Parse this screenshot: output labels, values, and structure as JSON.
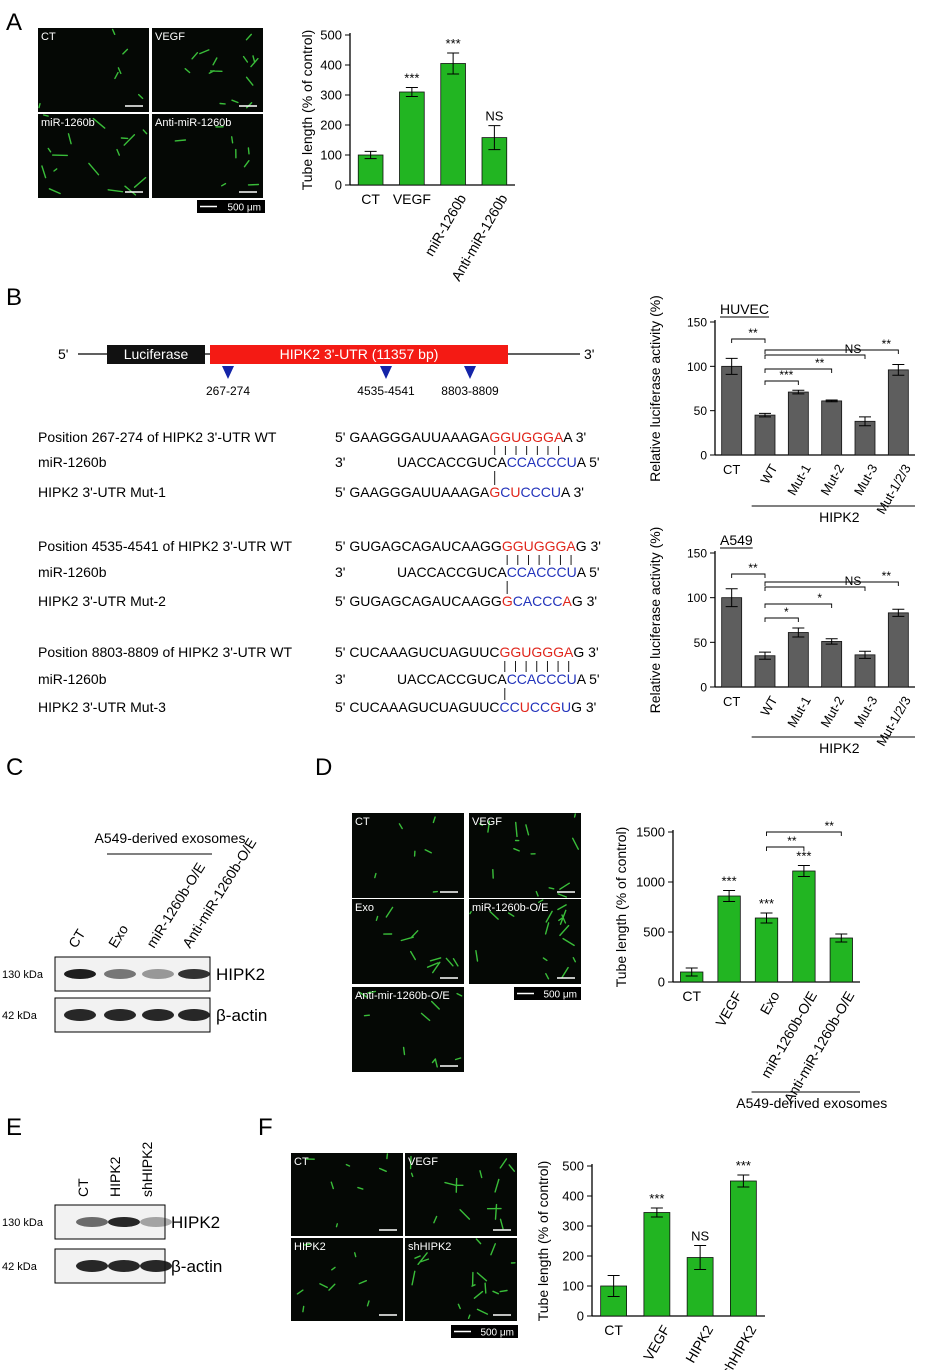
{
  "panel_labels": [
    "A",
    "B",
    "C",
    "D",
    "E",
    "F"
  ],
  "micrographs": {
    "a": {
      "labels": [
        "CT",
        "VEGF",
        "miR-1260b",
        "Anti-miR-1260b"
      ],
      "scale_bar": "500 μm"
    },
    "d": {
      "labels": [
        "CT",
        "VEGF",
        "Exo",
        "miR-1260b-O/E",
        "Anti-mir-1260b-O/E"
      ],
      "scale_bar": "500 μm"
    },
    "f": {
      "labels": [
        "CT",
        "VEGF",
        "HIPK2",
        "shHIPK2"
      ],
      "scale_bar": "500 μm"
    }
  },
  "construct": {
    "five_prime": "5'",
    "reporter": "Luciferase",
    "utr": "HIPK2 3'-UTR (11357 bp)",
    "three_prime": "3'",
    "sites": [
      "267-274",
      "4535-4541",
      "8803-8809"
    ]
  },
  "alignments": [
    {
      "rows": [
        {
          "label": "Position 267-274 of HIPK2 3'-UTR WT",
          "segments": [
            {
              "text": "5' GAAGGGAUUAAAGA",
              "color": "#000000"
            },
            {
              "text": "GGUGGGA",
              "color": "#e0261c"
            },
            {
              "text": "A 3'",
              "color": "#000000"
            }
          ]
        },
        {
          "label": "miR-1260b",
          "segments": [
            {
              "text": "3'",
              "color": "#000000"
            },
            {
              "text": "UACCACCGUCA",
              "color": "#000000"
            },
            {
              "text": "CCACCCU",
              "color": "#2233bb"
            },
            {
              "text": "A 5'",
              "color": "#000000"
            }
          ]
        },
        {
          "label": "HIPK2 3'-UTR Mut-1",
          "segments": [
            {
              "text": "5' GAAGGGAUUAAAGA",
              "color": "#000000"
            },
            {
              "text": "G",
              "color": "#e0261c"
            },
            {
              "text": "C",
              "color": "#2233bb"
            },
            {
              "text": "U",
              "color": "#e0261c"
            },
            {
              "text": "CCCU",
              "color": "#2233bb"
            },
            {
              "text": "A 3'",
              "color": "#000000"
            }
          ]
        }
      ]
    },
    {
      "rows": [
        {
          "label": "Position 4535-4541 of HIPK2 3'-UTR WT",
          "segments": [
            {
              "text": "5' GUGAGCAGAUCAAGG",
              "color": "#000000"
            },
            {
              "text": "GGUGGGA",
              "color": "#e0261c"
            },
            {
              "text": "G 3'",
              "color": "#000000"
            }
          ]
        },
        {
          "label": "miR-1260b",
          "segments": [
            {
              "text": "3'",
              "color": "#000000"
            },
            {
              "text": "UACCACCGUCA",
              "color": "#000000"
            },
            {
              "text": "CCACCCU",
              "color": "#2233bb"
            },
            {
              "text": "A 5'",
              "color": "#000000"
            }
          ]
        },
        {
          "label": "HIPK2 3'-UTR Mut-2",
          "segments": [
            {
              "text": "5' GUGAGCAGAUCAAGG",
              "color": "#000000"
            },
            {
              "text": "G",
              "color": "#e0261c"
            },
            {
              "text": "CACCC",
              "color": "#2233bb"
            },
            {
              "text": "A",
              "color": "#e0261c"
            },
            {
              "text": "G 3'",
              "color": "#000000"
            }
          ]
        }
      ]
    },
    {
      "rows": [
        {
          "label": "Position 8803-8809 of HIPK2 3'-UTR WT",
          "segments": [
            {
              "text": "5' CUCAAAGUCUAGUUC",
              "color": "#000000"
            },
            {
              "text": "GGUGGGA",
              "color": "#e0261c"
            },
            {
              "text": "G 3'",
              "color": "#000000"
            }
          ]
        },
        {
          "label": "miR-1260b",
          "segments": [
            {
              "text": "3'",
              "color": "#000000"
            },
            {
              "text": "UACCACCGUCA",
              "color": "#000000"
            },
            {
              "text": "CCACCCU",
              "color": "#2233bb"
            },
            {
              "text": "A 5'",
              "color": "#000000"
            }
          ]
        },
        {
          "label": "HIPK2 3'-UTR Mut-3",
          "segments": [
            {
              "text": "5' CUCAAAGUCUAGUUC",
              "color": "#000000"
            },
            {
              "text": "CC",
              "color": "#2233bb"
            },
            {
              "text": "U",
              "color": "#e0261c"
            },
            {
              "text": "CC",
              "color": "#2233bb"
            },
            {
              "text": "G",
              "color": "#e0261c"
            },
            {
              "text": "U",
              "color": "#2233bb"
            },
            {
              "text": "G 3'",
              "color": "#000000"
            }
          ]
        }
      ]
    }
  ],
  "blots": {
    "c": {
      "title": "A549-derived exosomes",
      "lanes": [
        "CT",
        "Exo",
        "miR-1260b-O/E",
        "Anti-miR-1260b-O/E"
      ],
      "rows": [
        {
          "size": "130 kDa",
          "protein": "HIPK2"
        },
        {
          "size": "42 kDa",
          "protein": "β-actin"
        }
      ]
    },
    "e": {
      "lanes": [
        "CT",
        "HIPK2",
        "shHIPK2"
      ],
      "rows": [
        {
          "size": "130 kDa",
          "protein": "HIPK2"
        },
        {
          "size": "42 kDa",
          "protein": "β-actin"
        }
      ]
    }
  },
  "chart_data": [
    {
      "type": "bar",
      "y_label": "Tube length (% of control)",
      "categories": [
        "CT",
        "VEGF",
        "miR-1260b",
        "Anti-miR-1260b"
      ],
      "values": [
        100,
        310,
        405,
        158
      ],
      "errors": [
        12,
        15,
        35,
        40
      ],
      "annotations": [
        null,
        "***",
        "***",
        "NS"
      ],
      "color": "#22b522",
      "ylim": [
        0,
        500
      ],
      "yticks": [
        0,
        100,
        200,
        300,
        400,
        500
      ]
    },
    {
      "type": "bar",
      "title": "HUVEC",
      "y_label": "Relative luciferase activity (%)",
      "categories": [
        "CT",
        "WT",
        "Mut-1",
        "Mut-2",
        "Mut-3",
        "Mut-1/2/3"
      ],
      "values": [
        100,
        45,
        71,
        61,
        38,
        96
      ],
      "errors": [
        9,
        2,
        2,
        1,
        5,
        6
      ],
      "brackets": [
        "**",
        "**",
        "NS",
        "**",
        "***"
      ],
      "group_label": "HIPK2",
      "color": "#5e5e5e",
      "ylim": [
        0,
        150
      ],
      "yticks": [
        0,
        50,
        100,
        150
      ]
    },
    {
      "type": "bar",
      "title": "A549",
      "y_label": "Relative luciferase activity (%)",
      "categories": [
        "CT",
        "WT",
        "Mut-1",
        "Mut-2",
        "Mut-3",
        "Mut-1/2/3"
      ],
      "values": [
        100,
        35,
        61,
        51,
        36,
        83
      ],
      "errors": [
        10,
        4,
        5,
        3,
        4,
        4
      ],
      "brackets": [
        "**",
        "**",
        "NS",
        "*",
        "*"
      ],
      "group_label": "HIPK2",
      "color": "#5e5e5e",
      "ylim": [
        0,
        150
      ],
      "yticks": [
        0,
        50,
        100,
        150
      ]
    },
    {
      "type": "bar",
      "y_label": "Tube length (% of control)",
      "categories": [
        "CT",
        "VEGF",
        "Exo",
        "miR-1260b-O/E",
        "Anti-miR-1260b-O/E"
      ],
      "values": [
        100,
        860,
        640,
        1110,
        440
      ],
      "errors": [
        40,
        55,
        50,
        55,
        40
      ],
      "annotations": [
        null,
        "***",
        "***",
        "***",
        null
      ],
      "brackets": [
        "**",
        "**"
      ],
      "group_label": "A549-derived exosomes",
      "color": "#22b522",
      "ylim": [
        0,
        1500
      ],
      "yticks": [
        0,
        500,
        1000,
        1500
      ]
    },
    {
      "type": "bar",
      "y_label": "Tube length (% of control)",
      "categories": [
        "CT",
        "VEGF",
        "HIPK2",
        "shHIPK2"
      ],
      "values": [
        100,
        345,
        195,
        450
      ],
      "errors": [
        35,
        15,
        40,
        20
      ],
      "annotations": [
        null,
        "***",
        "NS",
        "***"
      ],
      "color": "#22b522",
      "ylim": [
        0,
        500
      ],
      "yticks": [
        0,
        100,
        200,
        300,
        400,
        500
      ]
    }
  ]
}
